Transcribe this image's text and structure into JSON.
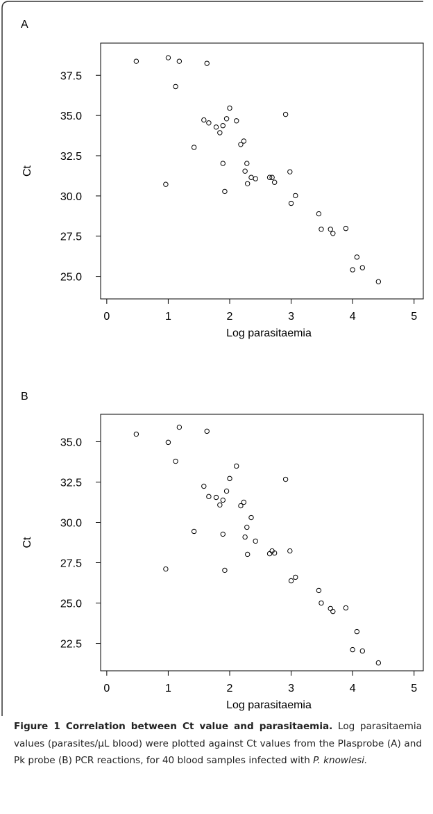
{
  "chart_data": [
    {
      "type": "scatter",
      "label": "A",
      "xlabel": "Log parasitaemia",
      "ylabel": "Ct",
      "x": [
        0.48,
        1.0,
        1.18,
        1.63,
        1.12,
        2.0,
        2.91,
        1.58,
        1.66,
        1.95,
        2.11,
        1.89,
        1.78,
        1.84,
        2.23,
        2.18,
        1.42,
        1.89,
        2.28,
        2.25,
        2.98,
        2.35,
        2.42,
        2.65,
        2.69,
        2.29,
        2.73,
        0.96,
        1.92,
        3.07,
        3.0,
        3.45,
        3.49,
        3.64,
        3.68,
        3.89,
        4.07,
        4.0,
        4.16,
        4.42
      ],
      "values": [
        38.37,
        38.59,
        38.37,
        38.24,
        36.8,
        35.46,
        35.07,
        34.72,
        34.54,
        34.8,
        34.67,
        34.37,
        34.28,
        33.93,
        33.41,
        33.2,
        33.02,
        32.02,
        32.02,
        31.54,
        31.5,
        31.15,
        31.07,
        31.15,
        31.15,
        30.76,
        30.85,
        30.72,
        30.28,
        30.02,
        29.54,
        28.89,
        27.93,
        27.93,
        27.67,
        27.98,
        26.2,
        25.41,
        25.54,
        24.67
      ],
      "xlim": [
        -0.1,
        5.15
      ],
      "xticks": [
        0,
        1,
        2,
        3,
        4,
        5
      ],
      "ylim": [
        23.6,
        39.5
      ],
      "yticks": [
        37.5,
        {
          "value": 35,
          "label": "35.0"
        },
        32.5,
        {
          "value": 30,
          "label": "30.0"
        },
        27.5,
        {
          "value": 25,
          "label": "25.0"
        }
      ]
    },
    {
      "type": "scatter",
      "label": "B",
      "xlabel": "Log parasitaemia",
      "ylabel": "Ct",
      "x": [
        0.48,
        1.0,
        1.18,
        1.63,
        1.12,
        2.0,
        2.91,
        1.58,
        1.66,
        1.95,
        2.11,
        1.89,
        1.78,
        1.84,
        2.23,
        2.18,
        1.42,
        1.89,
        2.28,
        2.25,
        2.98,
        2.35,
        2.42,
        2.65,
        2.69,
        2.29,
        2.73,
        0.96,
        1.92,
        3.07,
        3.0,
        3.45,
        3.49,
        3.64,
        3.68,
        3.89,
        4.07,
        4.0,
        4.16,
        4.42
      ],
      "values": [
        35.47,
        34.96,
        35.9,
        35.65,
        33.79,
        32.72,
        32.67,
        32.24,
        31.6,
        31.94,
        33.49,
        31.38,
        31.55,
        31.08,
        31.25,
        31.03,
        29.44,
        29.27,
        29.7,
        29.09,
        28.23,
        30.3,
        28.84,
        28.06,
        28.23,
        28.02,
        28.1,
        27.11,
        27.03,
        26.6,
        26.38,
        25.78,
        25.0,
        24.66,
        24.48,
        24.7,
        23.23,
        22.11,
        22.03,
        21.29
      ],
      "xlim": [
        -0.1,
        5.15
      ],
      "xticks": [
        0,
        1,
        2,
        3,
        4,
        5
      ],
      "ylim": [
        20.8,
        36.7
      ],
      "yticks": [
        {
          "value": 35,
          "label": "35.0"
        },
        32.5,
        {
          "value": 30,
          "label": "30.0"
        },
        27.5,
        {
          "value": 25,
          "label": "25.0"
        },
        22.5
      ]
    }
  ],
  "caption": {
    "title": "Figure 1 Correlation between Ct value and parasitaemia.",
    "text": "Log parasitaemia values (parasites/μL blood) were plotted against Ct values from the Plasprobe (A) and Pk probe (B) PCR reactions, for 40 blood samples infected with",
    "species": "P. knowlesi."
  }
}
